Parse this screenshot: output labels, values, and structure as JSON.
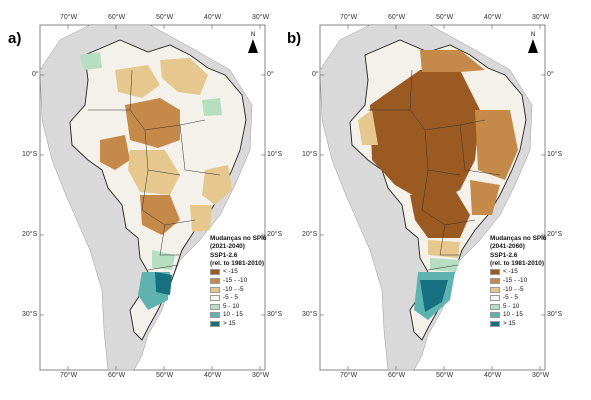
{
  "panels": [
    {
      "label": "a)",
      "legend": {
        "title": "Mudanças no SPI6",
        "period": "(2021-2040)",
        "scenario": "SSP1-2.6",
        "reference": "(rel. to 1981-2010)",
        "classes": [
          {
            "label": "< -15",
            "color": "#9b5a22"
          },
          {
            "label": "-15 - -10",
            "color": "#c5894a"
          },
          {
            "label": "-10 - -5",
            "color": "#e6c88f"
          },
          {
            "label": "-5 - 5",
            "color": "#f6f6f2"
          },
          {
            "label": "5 - 10",
            "color": "#b6dec0"
          },
          {
            "label": "10 - 15",
            "color": "#5eb2b0"
          },
          {
            "label": "> 15",
            "color": "#17707f"
          }
        ]
      }
    },
    {
      "label": "b)",
      "legend": {
        "title": "Mudanças no SPI6",
        "period": "(2041-2060)",
        "scenario": "SSP1-2.6",
        "reference": "(rel. to 1981-2010)",
        "classes": [
          {
            "label": "< -15",
            "color": "#9b5a22"
          },
          {
            "label": "-15 - -10",
            "color": "#c5894a"
          },
          {
            "label": "-10 - -5",
            "color": "#e6c88f"
          },
          {
            "label": "-5 - 5",
            "color": "#f6f6f2"
          },
          {
            "label": "5 - 10",
            "color": "#b6dec0"
          },
          {
            "label": "10 - 15",
            "color": "#5eb2b0"
          },
          {
            "label": "> 15",
            "color": "#17707f"
          }
        ]
      }
    }
  ],
  "axes": {
    "lon_top": [
      "70°W",
      "60°W",
      "50°W",
      "40°W",
      "30°W"
    ],
    "lon_bottom": [
      "70°W",
      "60°W",
      "50°W",
      "40°W",
      "30°W"
    ],
    "lat_left": [
      "0°",
      "10°S",
      "20°S",
      "30°S"
    ],
    "lat_right": [
      "0°",
      "10°S",
      "20°S",
      "30°S"
    ]
  },
  "north_label": "N",
  "colors": {
    "land": "#d9d9d9",
    "ocean": "#ffffff",
    "border": "#222222"
  }
}
